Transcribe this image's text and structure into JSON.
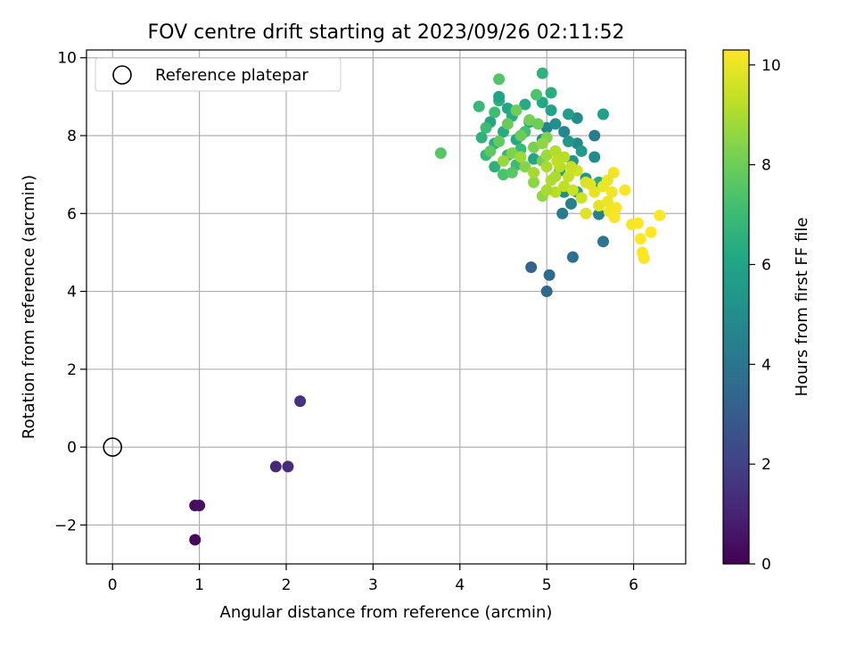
{
  "chart_data": {
    "type": "scatter",
    "title": "FOV centre drift starting at 2023/09/26 02:11:52",
    "xlabel": "Angular distance from reference (arcmin)",
    "ylabel": "Rotation from reference (arcmin)",
    "xlim": [
      -0.3,
      6.6
    ],
    "ylim": [
      -3.0,
      10.2
    ],
    "xticks": [
      "0",
      "1",
      "2",
      "3",
      "4",
      "5",
      "6"
    ],
    "yticks": [
      "−2",
      "0",
      "2",
      "4",
      "6",
      "8",
      "10"
    ],
    "grid": true,
    "legend": {
      "position": "top-left",
      "entries": [
        "Reference platepar"
      ]
    },
    "reference_point": {
      "x": 0,
      "y": 0
    },
    "colorbar": {
      "label": "Hours from first FF file",
      "range": [
        0,
        10.3
      ],
      "ticks": [
        "0",
        "2",
        "4",
        "6",
        "8",
        "10"
      ],
      "colormap": "viridis"
    },
    "series": [
      {
        "points": [
          {
            "x": 0.95,
            "y": -2.38,
            "t": 0.2
          },
          {
            "x": 0.95,
            "y": -1.5,
            "t": 0.3
          },
          {
            "x": 1.0,
            "y": -1.5,
            "t": 0.4
          },
          {
            "x": 1.88,
            "y": -0.5,
            "t": 1.2
          },
          {
            "x": 2.02,
            "y": -0.5,
            "t": 1.3
          },
          {
            "x": 2.16,
            "y": 1.18,
            "t": 1.5
          },
          {
            "x": 4.82,
            "y": 4.62,
            "t": 3.3
          },
          {
            "x": 5.0,
            "y": 4.0,
            "t": 3.5
          },
          {
            "x": 5.03,
            "y": 4.42,
            "t": 3.6
          },
          {
            "x": 5.3,
            "y": 4.88,
            "t": 3.8
          },
          {
            "x": 5.65,
            "y": 5.28,
            "t": 4.0
          },
          {
            "x": 5.18,
            "y": 6.0,
            "t": 4.2
          },
          {
            "x": 5.28,
            "y": 6.25,
            "t": 4.4
          },
          {
            "x": 5.6,
            "y": 5.98,
            "t": 4.5
          },
          {
            "x": 5.0,
            "y": 8.2,
            "t": 4.6
          },
          {
            "x": 5.2,
            "y": 8.1,
            "t": 4.7
          },
          {
            "x": 5.35,
            "y": 7.8,
            "t": 4.8
          },
          {
            "x": 5.55,
            "y": 7.45,
            "t": 4.9
          },
          {
            "x": 5.55,
            "y": 8.0,
            "t": 4.3
          },
          {
            "x": 5.35,
            "y": 8.45,
            "t": 5.0
          },
          {
            "x": 5.1,
            "y": 8.3,
            "t": 5.1
          },
          {
            "x": 4.95,
            "y": 7.9,
            "t": 5.2
          },
          {
            "x": 5.3,
            "y": 7.35,
            "t": 5.3
          },
          {
            "x": 5.45,
            "y": 6.9,
            "t": 5.4
          },
          {
            "x": 5.2,
            "y": 6.55,
            "t": 5.0
          },
          {
            "x": 5.15,
            "y": 7.1,
            "t": 5.5
          },
          {
            "x": 5.4,
            "y": 7.6,
            "t": 5.6
          },
          {
            "x": 5.65,
            "y": 8.55,
            "t": 5.8
          },
          {
            "x": 5.25,
            "y": 8.55,
            "t": 5.7
          },
          {
            "x": 5.05,
            "y": 8.65,
            "t": 5.9
          },
          {
            "x": 4.8,
            "y": 8.35,
            "t": 6.0
          },
          {
            "x": 4.95,
            "y": 8.85,
            "t": 6.2
          },
          {
            "x": 5.05,
            "y": 9.1,
            "t": 6.4
          },
          {
            "x": 4.95,
            "y": 9.6,
            "t": 6.6
          },
          {
            "x": 4.75,
            "y": 8.8,
            "t": 6.3
          },
          {
            "x": 4.55,
            "y": 8.7,
            "t": 6.1
          },
          {
            "x": 4.45,
            "y": 8.9,
            "t": 6.5
          },
          {
            "x": 4.35,
            "y": 8.35,
            "t": 6.0
          },
          {
            "x": 4.5,
            "y": 8.1,
            "t": 6.3
          },
          {
            "x": 4.65,
            "y": 7.9,
            "t": 6.2
          },
          {
            "x": 4.4,
            "y": 7.8,
            "t": 6.4
          },
          {
            "x": 4.25,
            "y": 7.95,
            "t": 6.6
          },
          {
            "x": 4.3,
            "y": 7.5,
            "t": 6.8
          },
          {
            "x": 4.4,
            "y": 7.2,
            "t": 6.5
          },
          {
            "x": 4.55,
            "y": 7.5,
            "t": 6.7
          },
          {
            "x": 4.7,
            "y": 7.65,
            "t": 6.9
          },
          {
            "x": 4.85,
            "y": 7.4,
            "t": 6.1
          },
          {
            "x": 5.1,
            "y": 7.6,
            "t": 5.6
          },
          {
            "x": 5.25,
            "y": 7.85,
            "t": 5.4
          },
          {
            "x": 5.6,
            "y": 6.8,
            "t": 6.3
          },
          {
            "x": 5.35,
            "y": 6.55,
            "t": 5.8
          },
          {
            "x": 4.45,
            "y": 9.0,
            "t": 6.0
          },
          {
            "x": 4.6,
            "y": 8.5,
            "t": 6.4
          },
          {
            "x": 4.22,
            "y": 8.75,
            "t": 6.9
          },
          {
            "x": 4.3,
            "y": 8.2,
            "t": 7.0
          },
          {
            "x": 4.4,
            "y": 8.6,
            "t": 7.1
          },
          {
            "x": 4.75,
            "y": 8.1,
            "t": 7.2
          },
          {
            "x": 4.65,
            "y": 7.25,
            "t": 7.0
          },
          {
            "x": 4.88,
            "y": 9.05,
            "t": 7.4
          },
          {
            "x": 4.45,
            "y": 9.45,
            "t": 7.5
          },
          {
            "x": 3.78,
            "y": 7.55,
            "t": 7.6
          },
          {
            "x": 4.5,
            "y": 7.0,
            "t": 7.3
          },
          {
            "x": 4.6,
            "y": 7.05,
            "t": 7.6
          },
          {
            "x": 4.35,
            "y": 7.6,
            "t": 7.7
          },
          {
            "x": 4.45,
            "y": 7.85,
            "t": 7.8
          },
          {
            "x": 4.55,
            "y": 8.3,
            "t": 7.9
          },
          {
            "x": 4.65,
            "y": 8.65,
            "t": 8.0
          },
          {
            "x": 4.8,
            "y": 8.4,
            "t": 8.1
          },
          {
            "x": 4.7,
            "y": 8.0,
            "t": 7.9
          },
          {
            "x": 4.85,
            "y": 7.7,
            "t": 8.2
          },
          {
            "x": 4.95,
            "y": 7.35,
            "t": 8.1
          },
          {
            "x": 5.0,
            "y": 7.95,
            "t": 8.3
          },
          {
            "x": 4.9,
            "y": 8.3,
            "t": 8.0
          },
          {
            "x": 4.75,
            "y": 7.2,
            "t": 8.4
          },
          {
            "x": 4.85,
            "y": 6.8,
            "t": 8.5
          },
          {
            "x": 4.95,
            "y": 6.45,
            "t": 8.6
          },
          {
            "x": 4.6,
            "y": 7.55,
            "t": 8.3
          },
          {
            "x": 4.5,
            "y": 7.35,
            "t": 8.7
          },
          {
            "x": 4.7,
            "y": 7.45,
            "t": 8.8
          },
          {
            "x": 4.85,
            "y": 7.05,
            "t": 8.9
          },
          {
            "x": 5.0,
            "y": 7.2,
            "t": 9.0
          },
          {
            "x": 5.05,
            "y": 6.85,
            "t": 9.1
          },
          {
            "x": 5.1,
            "y": 6.55,
            "t": 9.2
          },
          {
            "x": 5.2,
            "y": 6.7,
            "t": 9.3
          },
          {
            "x": 5.15,
            "y": 7.2,
            "t": 9.2
          },
          {
            "x": 5.25,
            "y": 6.95,
            "t": 9.4
          },
          {
            "x": 5.3,
            "y": 6.6,
            "t": 9.5
          },
          {
            "x": 5.35,
            "y": 7.1,
            "t": 9.6
          },
          {
            "x": 5.4,
            "y": 6.4,
            "t": 9.5
          },
          {
            "x": 5.45,
            "y": 6.8,
            "t": 9.7
          },
          {
            "x": 5.0,
            "y": 6.6,
            "t": 9.0
          },
          {
            "x": 4.95,
            "y": 7.8,
            "t": 8.6
          },
          {
            "x": 5.0,
            "y": 7.5,
            "t": 8.8
          },
          {
            "x": 5.1,
            "y": 7.6,
            "t": 9.1
          },
          {
            "x": 5.12,
            "y": 7.35,
            "t": 9.3
          },
          {
            "x": 5.2,
            "y": 7.45,
            "t": 9.2
          },
          {
            "x": 5.28,
            "y": 7.2,
            "t": 9.4
          },
          {
            "x": 5.1,
            "y": 6.95,
            "t": 9.0
          },
          {
            "x": 5.45,
            "y": 6.0,
            "t": 9.8
          },
          {
            "x": 5.6,
            "y": 6.2,
            "t": 9.9
          },
          {
            "x": 5.65,
            "y": 6.7,
            "t": 10.0
          },
          {
            "x": 5.7,
            "y": 6.3,
            "t": 10.0
          },
          {
            "x": 5.72,
            "y": 6.05,
            "t": 10.1
          },
          {
            "x": 5.75,
            "y": 6.55,
            "t": 10.1
          },
          {
            "x": 5.78,
            "y": 5.9,
            "t": 10.2
          },
          {
            "x": 5.8,
            "y": 6.15,
            "t": 10.2
          },
          {
            "x": 5.9,
            "y": 6.6,
            "t": 10.2
          },
          {
            "x": 5.77,
            "y": 7.05,
            "t": 10.1
          },
          {
            "x": 5.7,
            "y": 6.85,
            "t": 10.0
          },
          {
            "x": 5.98,
            "y": 5.72,
            "t": 10.2
          },
          {
            "x": 6.05,
            "y": 5.75,
            "t": 10.3
          },
          {
            "x": 6.08,
            "y": 5.35,
            "t": 10.3
          },
          {
            "x": 6.1,
            "y": 5.0,
            "t": 10.3
          },
          {
            "x": 6.12,
            "y": 4.85,
            "t": 10.3
          },
          {
            "x": 6.2,
            "y": 5.52,
            "t": 10.3
          },
          {
            "x": 6.3,
            "y": 5.95,
            "t": 10.3
          },
          {
            "x": 5.55,
            "y": 6.55,
            "t": 9.9
          },
          {
            "x": 5.5,
            "y": 6.75,
            "t": 9.8
          }
        ]
      }
    ]
  }
}
